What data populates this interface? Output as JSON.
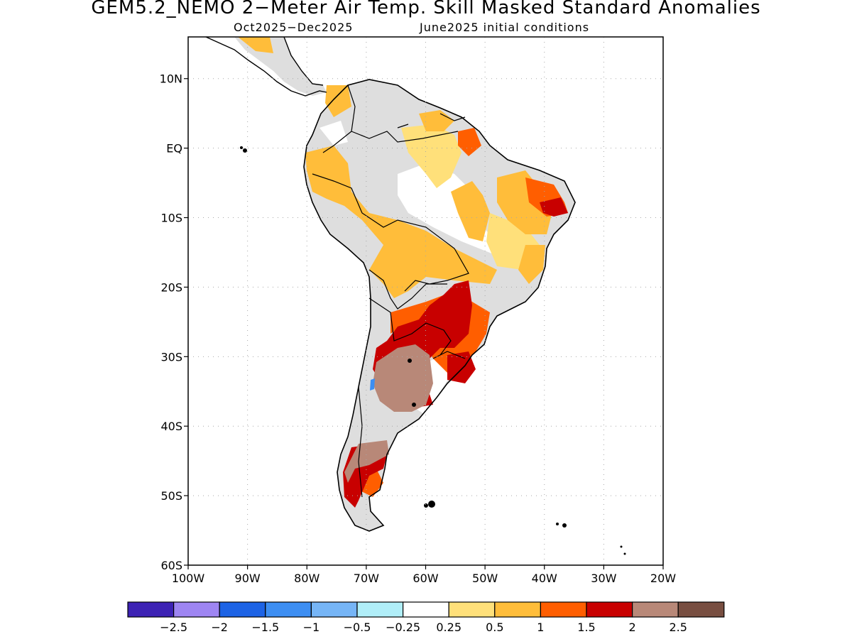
{
  "title": "GEM5.2_NEMO 2−Meter Air Temp. Skill Masked Standard Anomalies",
  "subtitle": {
    "period": "Oct2025−Dec2025",
    "init": "June2025 initial conditions"
  },
  "map": {
    "lon_range": [
      -100,
      -20
    ],
    "lat_range": [
      -60,
      16
    ],
    "lon_ticks": [
      "100W",
      "90W",
      "80W",
      "70W",
      "60W",
      "50W",
      "40W",
      "30W",
      "20W"
    ],
    "lat_ticks": [
      "10N",
      "EQ",
      "10S",
      "20S",
      "30S",
      "40S",
      "50S",
      "60S"
    ],
    "grid": "dotted"
  },
  "colorbar": {
    "labels": [
      "−2.5",
      "−2",
      "−1.5",
      "−1",
      "−0.5",
      "−0.25",
      "0.25",
      "0.5",
      "1",
      "1.5",
      "2",
      "2.5"
    ],
    "colors": [
      "#3d22b4",
      "#9e85f2",
      "#1d63e5",
      "#3d8ef2",
      "#76b5f6",
      "#b0eef8",
      "#ffffff",
      "#ffe07a",
      "#ffbd3a",
      "#ff5e00",
      "#c80000",
      "#b88878",
      "#784e41"
    ]
  },
  "regions": [
    {
      "name": "masked-no-skill",
      "color": "#dedede"
    },
    {
      "name": "anomaly-0.25-0.5",
      "color": "#ffe07a"
    },
    {
      "name": "anomaly-0.5-1",
      "color": "#ffbd3a"
    },
    {
      "name": "anomaly-1-1.5",
      "color": "#ff5e00"
    },
    {
      "name": "anomaly-1.5-2",
      "color": "#c80000"
    },
    {
      "name": "anomaly-2-2.5",
      "color": "#b88878"
    }
  ]
}
